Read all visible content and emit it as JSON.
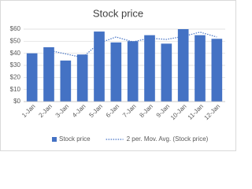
{
  "chart_data": {
    "type": "bar",
    "title": "Stock price",
    "categories": [
      "1-Jan",
      "2-Jan",
      "3-Jan",
      "4-Jan",
      "5-Jan",
      "6-Jan",
      "7-Jan",
      "8-Jan",
      "9-Jan",
      "10-Jan",
      "11-Jan",
      "12-Jan"
    ],
    "series": [
      {
        "name": "Stock price",
        "color": "#4472c4",
        "type": "bar",
        "values": [
          40,
          45,
          34,
          39,
          58,
          49,
          50,
          55,
          48,
          60,
          55,
          52
        ]
      },
      {
        "name": "2 per. Mov. Avg. (Stock price)",
        "color": "#4472c4",
        "type": "line",
        "dash": true,
        "values": [
          null,
          42.5,
          39.5,
          36.5,
          48.5,
          53.5,
          49.5,
          52.5,
          51.5,
          54,
          57.5,
          53.5
        ]
      }
    ],
    "ylim": [
      0,
      60
    ],
    "yticks": [
      {
        "value": 0,
        "label": "$0"
      },
      {
        "value": 10,
        "label": "$10"
      },
      {
        "value": 20,
        "label": "$20"
      },
      {
        "value": 30,
        "label": "$30"
      },
      {
        "value": 40,
        "label": "$40"
      },
      {
        "value": 50,
        "label": "$50"
      },
      {
        "value": 60,
        "label": "$60"
      }
    ],
    "grid": true,
    "legend": "bottom"
  }
}
